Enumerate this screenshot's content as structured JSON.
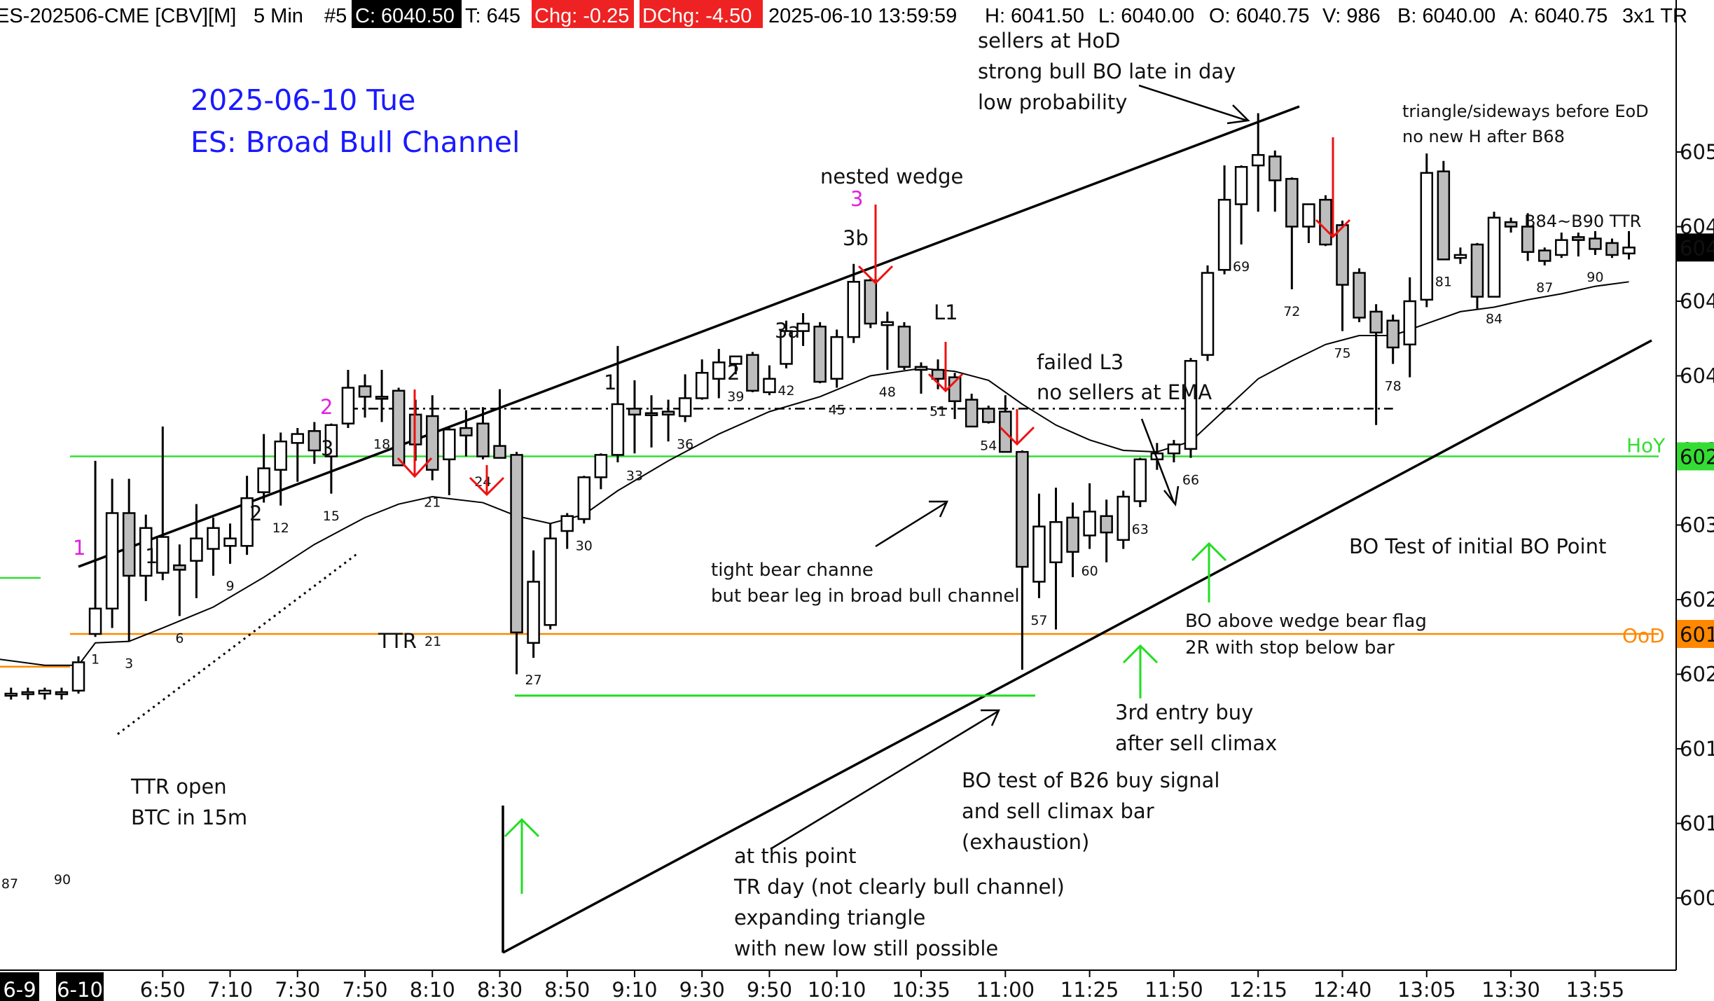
{
  "header": {
    "symbol": "ES-202506-CME [CBV][M]",
    "interval": "5 Min",
    "chart_no": "#5",
    "close": "C: 6040.50",
    "ticks": "T: 645",
    "change": "Chg: -0.25",
    "day_change": "DChg: -4.50",
    "datetime": "2025-06-10 13:59:59",
    "high": "H: 6041.50",
    "low": "L: 6040.00",
    "open": "O: 6040.75",
    "volume": "V: 986",
    "bid": "B: 6040.00",
    "ask": "A: 6040.75",
    "tail": "3x1 TR"
  },
  "title_lines": [
    "2025-06-10 Tue",
    "ES: Broad Bull Channel"
  ],
  "colors": {
    "title": "#1a1aff",
    "bull_fill": "#ffffff",
    "bear_fill": "#bdbdbd",
    "hoy": "#33dd33",
    "ood": "#ff8800",
    "arrow_red": "#ee1111",
    "arrow_green": "#22dd22",
    "magenta": "#dd22dd",
    "price_box": "#000000"
  },
  "chart_data": {
    "type": "candlestick",
    "title": "ES: Broad Bull Channel",
    "date": "2025-06-10 Tue",
    "ylim": [
      6000,
      6055
    ],
    "y_ticks": [
      6000,
      6005,
      6010,
      6015,
      6020,
      6025,
      6030,
      6035,
      6040,
      6045,
      6050
    ],
    "y_tick_labels": [
      "600",
      "601",
      "601",
      "602",
      "602",
      "603",
      "603",
      "604",
      "604",
      "604",
      "605"
    ],
    "x_tick_labels": [
      "6-9",
      "6-10",
      "6:50",
      "7:10",
      "7:30",
      "7:50",
      "8:10",
      "8:30",
      "8:50",
      "9:10",
      "9:30",
      "9:50",
      "10:10",
      "10:35",
      "11:00",
      "11:25",
      "11:50",
      "12:15",
      "12:40",
      "13:05",
      "13:30",
      "13:55"
    ],
    "x_tick_slots": [
      -2,
      1,
      5,
      9,
      13,
      17,
      21,
      25,
      29,
      33,
      37,
      41,
      45,
      50,
      55,
      60,
      65,
      70,
      75,
      80,
      85,
      90
    ],
    "prev_bars": [
      {
        "slot": -4,
        "o": 6013.7,
        "h": 6014.1,
        "l": 6013.3,
        "c": 6013.7
      },
      {
        "slot": -3,
        "o": 6013.7,
        "h": 6014.1,
        "l": 6013.3,
        "c": 6013.8
      },
      {
        "slot": -2,
        "o": 6013.7,
        "h": 6014.1,
        "l": 6013.3,
        "c": 6013.9
      },
      {
        "slot": -1,
        "o": 6013.7,
        "h": 6014.1,
        "l": 6013.3,
        "c": 6013.8
      },
      {
        "slot": 0,
        "o": 6013.9,
        "h": 6016.2,
        "l": 6013.7,
        "c": 6015.8
      }
    ],
    "bars": [
      {
        "n": 1,
        "o": 6017.7,
        "h": 6029.3,
        "l": 6017.5,
        "c": 6019.4
      },
      {
        "n": 2,
        "o": 6019.4,
        "h": 6028.1,
        "l": 6018.1,
        "c": 6025.8
      },
      {
        "n": 3,
        "o": 6025.8,
        "h": 6028.1,
        "l": 6017.2,
        "c": 6021.6
      },
      {
        "n": 4,
        "o": 6021.6,
        "h": 6025.7,
        "l": 6019.9,
        "c": 6024.8
      },
      {
        "n": 5,
        "o": 6021.8,
        "h": 6031.6,
        "l": 6021.3,
        "c": 6024.2
      },
      {
        "n": 6,
        "o": 6022.3,
        "h": 6023.7,
        "l": 6018.9,
        "c": 6022.0
      },
      {
        "n": 7,
        "o": 6022.6,
        "h": 6026.4,
        "l": 6020.1,
        "c": 6024.1
      },
      {
        "n": 8,
        "o": 6023.4,
        "h": 6025.5,
        "l": 6021.6,
        "c": 6024.8
      },
      {
        "n": 9,
        "o": 6023.6,
        "h": 6025.1,
        "l": 6022.4,
        "c": 6024.1
      },
      {
        "n": 10,
        "o": 6023.6,
        "h": 6028.3,
        "l": 6023.0,
        "c": 6026.8
      },
      {
        "n": 11,
        "o": 6027.2,
        "h": 6031.1,
        "l": 6026.5,
        "c": 6028.8
      },
      {
        "n": 12,
        "o": 6028.7,
        "h": 6031.2,
        "l": 6026.3,
        "c": 6030.6
      },
      {
        "n": 13,
        "o": 6030.5,
        "h": 6031.5,
        "l": 6027.9,
        "c": 6031.1
      },
      {
        "n": 14,
        "o": 6031.3,
        "h": 6031.9,
        "l": 6029.1,
        "c": 6030.0
      },
      {
        "n": 15,
        "o": 6029.6,
        "h": 6031.8,
        "l": 6027.1,
        "c": 6031.7
      },
      {
        "n": 16,
        "o": 6031.8,
        "h": 6035.4,
        "l": 6031.5,
        "c": 6034.2
      },
      {
        "n": 17,
        "o": 6034.3,
        "h": 6035.1,
        "l": 6032.2,
        "c": 6033.6
      },
      {
        "n": 18,
        "o": 6033.6,
        "h": 6035.4,
        "l": 6031.9,
        "c": 6033.5
      },
      {
        "n": 19,
        "o": 6034.0,
        "h": 6034.2,
        "l": 6029.1,
        "c": 6029.0
      },
      {
        "n": 20,
        "o": 6032.4,
        "h": 6033.4,
        "l": 6029.3,
        "c": 6030.4
      },
      {
        "n": 21,
        "o": 6032.3,
        "h": 6033.7,
        "l": 6028.0,
        "c": 6028.7
      },
      {
        "n": 22,
        "o": 6029.4,
        "h": 6031.5,
        "l": 6027.0,
        "c": 6031.4
      },
      {
        "n": 23,
        "o": 6031.5,
        "h": 6032.7,
        "l": 6029.6,
        "c": 6031.0
      },
      {
        "n": 24,
        "o": 6031.8,
        "h": 6032.9,
        "l": 6029.4,
        "c": 6029.6
      },
      {
        "n": 25,
        "o": 6030.3,
        "h": 6034.1,
        "l": 6029.8,
        "c": 6029.5
      },
      {
        "n": 26,
        "o": 6029.7,
        "h": 6029.9,
        "l": 6015.0,
        "c": 6017.8
      },
      {
        "n": 27,
        "o": 6017.1,
        "h": 6023.3,
        "l": 6016.1,
        "c": 6021.2
      },
      {
        "n": 28,
        "o": 6018.3,
        "h": 6025.1,
        "l": 6018.0,
        "c": 6024.1
      },
      {
        "n": 29,
        "o": 6024.6,
        "h": 6025.8,
        "l": 6023.4,
        "c": 6025.6
      },
      {
        "n": 30,
        "o": 6025.4,
        "h": 6028.3,
        "l": 6025.1,
        "c": 6028.2
      },
      {
        "n": 31,
        "o": 6028.2,
        "h": 6029.8,
        "l": 6027.4,
        "c": 6029.7
      },
      {
        "n": 32,
        "o": 6029.7,
        "h": 6037.0,
        "l": 6029.2,
        "c": 6033.1
      },
      {
        "n": 33,
        "o": 6032.8,
        "h": 6034.7,
        "l": 6029.8,
        "c": 6032.4
      },
      {
        "n": 34,
        "o": 6032.5,
        "h": 6033.7,
        "l": 6030.2,
        "c": 6032.4
      },
      {
        "n": 35,
        "o": 6032.6,
        "h": 6033.4,
        "l": 6030.6,
        "c": 6032.4
      },
      {
        "n": 36,
        "o": 6032.3,
        "h": 6035.1,
        "l": 6031.9,
        "c": 6033.5
      },
      {
        "n": 37,
        "o": 6033.5,
        "h": 6036.1,
        "l": 6033.4,
        "c": 6035.2
      },
      {
        "n": 38,
        "o": 6034.8,
        "h": 6036.8,
        "l": 6033.5,
        "c": 6035.9
      },
      {
        "n": 39,
        "o": 6035.8,
        "h": 6036.3,
        "l": 6035.1,
        "c": 6036.3
      },
      {
        "n": 40,
        "o": 6036.4,
        "h": 6036.6,
        "l": 6033.9,
        "c": 6034.0
      },
      {
        "n": 41,
        "o": 6033.9,
        "h": 6035.7,
        "l": 6033.7,
        "c": 6034.8
      },
      {
        "n": 42,
        "o": 6035.8,
        "h": 6038.7,
        "l": 6035.5,
        "c": 6038.0
      },
      {
        "n": 43,
        "o": 6038.0,
        "h": 6039.2,
        "l": 6037.0,
        "c": 6038.5
      },
      {
        "n": 44,
        "o": 6038.3,
        "h": 6038.6,
        "l": 6034.5,
        "c": 6034.6
      },
      {
        "n": 45,
        "o": 6034.8,
        "h": 6038.1,
        "l": 6034.2,
        "c": 6037.6
      },
      {
        "n": 46,
        "o": 6037.6,
        "h": 6042.5,
        "l": 6037.2,
        "c": 6041.3
      },
      {
        "n": 47,
        "o": 6041.4,
        "h": 6041.5,
        "l": 6038.2,
        "c": 6038.5
      },
      {
        "n": 48,
        "o": 6038.4,
        "h": 6039.3,
        "l": 6035.4,
        "c": 6038.6
      },
      {
        "n": 49,
        "o": 6038.3,
        "h": 6038.6,
        "l": 6035.4,
        "c": 6035.6
      },
      {
        "n": 50,
        "o": 6035.6,
        "h": 6035.9,
        "l": 6033.8,
        "c": 6035.4
      },
      {
        "n": 51,
        "o": 6035.4,
        "h": 6036.1,
        "l": 6034.1,
        "c": 6034.8
      },
      {
        "n": 52,
        "o": 6034.9,
        "h": 6035.2,
        "l": 6032.1,
        "c": 6033.3
      },
      {
        "n": 53,
        "o": 6033.4,
        "h": 6033.8,
        "l": 6031.8,
        "c": 6031.6
      },
      {
        "n": 54,
        "o": 6032.8,
        "h": 6033.0,
        "l": 6031.8,
        "c": 6031.9
      },
      {
        "n": 55,
        "o": 6032.6,
        "h": 6033.7,
        "l": 6029.9,
        "c": 6029.9
      },
      {
        "n": 56,
        "o": 6029.9,
        "h": 6030.0,
        "l": 6015.3,
        "c": 6022.2
      },
      {
        "n": 57,
        "o": 6021.2,
        "h": 6027.1,
        "l": 6020.1,
        "c": 6024.9
      },
      {
        "n": 58,
        "o": 6022.5,
        "h": 6027.5,
        "l": 6018.0,
        "c": 6025.2
      },
      {
        "n": 59,
        "o": 6025.5,
        "h": 6026.5,
        "l": 6021.5,
        "c": 6023.2
      },
      {
        "n": 60,
        "o": 6024.3,
        "h": 6027.8,
        "l": 6023.4,
        "c": 6025.9
      },
      {
        "n": 61,
        "o": 6025.6,
        "h": 6026.7,
        "l": 6022.5,
        "c": 6024.5
      },
      {
        "n": 62,
        "o": 6024.0,
        "h": 6027.3,
        "l": 6023.4,
        "c": 6026.9
      },
      {
        "n": 63,
        "o": 6026.6,
        "h": 6029.5,
        "l": 6026.2,
        "c": 6029.4
      },
      {
        "n": 64,
        "o": 6029.4,
        "h": 6030.5,
        "l": 6028.7,
        "c": 6029.8
      },
      {
        "n": 65,
        "o": 6029.8,
        "h": 6030.7,
        "l": 6029.2,
        "c": 6030.4
      },
      {
        "n": 66,
        "o": 6030.1,
        "h": 6036.2,
        "l": 6029.5,
        "c": 6036.0
      },
      {
        "n": 67,
        "o": 6036.4,
        "h": 6042.4,
        "l": 6036.0,
        "c": 6041.9
      },
      {
        "n": 68,
        "o": 6042.1,
        "h": 6049.1,
        "l": 6041.8,
        "c": 6046.8
      },
      {
        "n": 69,
        "o": 6046.5,
        "h": 6049.1,
        "l": 6043.8,
        "c": 6049.0
      },
      {
        "n": 70,
        "o": 6049.1,
        "h": 6052.6,
        "l": 6046.0,
        "c": 6049.8
      },
      {
        "n": 71,
        "o": 6049.7,
        "h": 6050.1,
        "l": 6046.0,
        "c": 6048.1
      },
      {
        "n": 72,
        "o": 6048.2,
        "h": 6048.3,
        "l": 6040.8,
        "c": 6045.0
      },
      {
        "n": 73,
        "o": 6045.0,
        "h": 6046.5,
        "l": 6043.9,
        "c": 6046.5
      },
      {
        "n": 74,
        "o": 6046.8,
        "h": 6047.1,
        "l": 6043.7,
        "c": 6043.8
      },
      {
        "n": 75,
        "o": 6045.1,
        "h": 6045.4,
        "l": 6038.0,
        "c": 6041.1
      },
      {
        "n": 76,
        "o": 6041.9,
        "h": 6042.2,
        "l": 6038.6,
        "c": 6038.9
      },
      {
        "n": 77,
        "o": 6039.3,
        "h": 6039.8,
        "l": 6031.7,
        "c": 6037.9
      },
      {
        "n": 78,
        "o": 6038.7,
        "h": 6039.1,
        "l": 6035.8,
        "c": 6036.9
      },
      {
        "n": 79,
        "o": 6037.1,
        "h": 6041.6,
        "l": 6034.9,
        "c": 6040.0
      },
      {
        "n": 80,
        "o": 6040.1,
        "h": 6049.9,
        "l": 6039.6,
        "c": 6048.6
      },
      {
        "n": 81,
        "o": 6048.7,
        "h": 6049.4,
        "l": 6042.8,
        "c": 6042.8
      },
      {
        "n": 82,
        "o": 6042.9,
        "h": 6043.6,
        "l": 6042.5,
        "c": 6043.1
      },
      {
        "n": 83,
        "o": 6043.8,
        "h": 6043.9,
        "l": 6039.5,
        "c": 6040.3
      },
      {
        "n": 84,
        "o": 6040.3,
        "h": 6046.0,
        "l": 6040.3,
        "c": 6045.6
      },
      {
        "n": 85,
        "o": 6045.3,
        "h": 6045.6,
        "l": 6044.6,
        "c": 6045.0
      },
      {
        "n": 86,
        "o": 6045.0,
        "h": 6045.9,
        "l": 6042.7,
        "c": 6043.3
      },
      {
        "n": 87,
        "o": 6043.4,
        "h": 6043.6,
        "l": 6042.4,
        "c": 6042.7
      },
      {
        "n": 88,
        "o": 6043.1,
        "h": 6044.6,
        "l": 6042.9,
        "c": 6044.1
      },
      {
        "n": 89,
        "o": 6044.3,
        "h": 6044.6,
        "l": 6043.0,
        "c": 6044.1
      },
      {
        "n": 90,
        "o": 6044.2,
        "h": 6044.7,
        "l": 6043.1,
        "c": 6043.5
      },
      {
        "n": 91,
        "o": 6043.9,
        "h": 6044.2,
        "l": 6042.9,
        "c": 6043.1
      },
      {
        "n": 92,
        "o": 6043.2,
        "h": 6044.7,
        "l": 6042.8,
        "c": 6043.6
      }
    ],
    "bar_number_labels": [
      1,
      3,
      6,
      9,
      12,
      15,
      18,
      21,
      24,
      27,
      30,
      33,
      36,
      39,
      42,
      45,
      48,
      51,
      54,
      57,
      60,
      63,
      66,
      69,
      72,
      75,
      78,
      81,
      84,
      87,
      90
    ],
    "ema": [
      {
        "slot": -10,
        "y": 6017.8
      },
      {
        "slot": -6,
        "y": 6016.2
      },
      {
        "slot": -2,
        "y": 6015.6
      },
      {
        "slot": 0,
        "y": 6015.6
      },
      {
        "slot": 1,
        "y": 6017.1
      },
      {
        "slot": 3,
        "y": 6017.2
      },
      {
        "slot": 5,
        "y": 6018.1
      },
      {
        "slot": 8,
        "y": 6019.5
      },
      {
        "slot": 11,
        "y": 6021.5
      },
      {
        "slot": 14,
        "y": 6023.7
      },
      {
        "slot": 17,
        "y": 6025.5
      },
      {
        "slot": 19,
        "y": 6026.4
      },
      {
        "slot": 21,
        "y": 6026.9
      },
      {
        "slot": 24,
        "y": 6026.5
      },
      {
        "slot": 26,
        "y": 6025.6
      },
      {
        "slot": 28,
        "y": 6025.1
      },
      {
        "slot": 30,
        "y": 6025.7
      },
      {
        "slot": 32,
        "y": 6027.3
      },
      {
        "slot": 35,
        "y": 6029.3
      },
      {
        "slot": 38,
        "y": 6031.1
      },
      {
        "slot": 41,
        "y": 6032.6
      },
      {
        "slot": 44,
        "y": 6033.6
      },
      {
        "slot": 47,
        "y": 6035.0
      },
      {
        "slot": 50,
        "y": 6035.5
      },
      {
        "slot": 52,
        "y": 6035.3
      },
      {
        "slot": 54,
        "y": 6034.7
      },
      {
        "slot": 56,
        "y": 6033.1
      },
      {
        "slot": 58,
        "y": 6031.7
      },
      {
        "slot": 60,
        "y": 6030.7
      },
      {
        "slot": 62,
        "y": 6030.0
      },
      {
        "slot": 64,
        "y": 6029.9
      },
      {
        "slot": 66,
        "y": 6030.6
      },
      {
        "slot": 68,
        "y": 6032.7
      },
      {
        "slot": 70,
        "y": 6034.8
      },
      {
        "slot": 72,
        "y": 6036.0
      },
      {
        "slot": 74,
        "y": 6037.1
      },
      {
        "slot": 76,
        "y": 6037.7
      },
      {
        "slot": 78,
        "y": 6037.7
      },
      {
        "slot": 80,
        "y": 6038.5
      },
      {
        "slot": 82,
        "y": 6039.3
      },
      {
        "slot": 84,
        "y": 6039.6
      },
      {
        "slot": 86,
        "y": 6040.1
      },
      {
        "slot": 88,
        "y": 6040.5
      },
      {
        "slot": 90,
        "y": 6041.0
      },
      {
        "slot": 92,
        "y": 6041.3
      }
    ],
    "levels": {
      "hoy": {
        "price": 6029.6,
        "label": "HoY",
        "tag": "602"
      },
      "ood": {
        "price": 6017.7,
        "label": "OoD",
        "tag": "601"
      },
      "last_price_tag": "604",
      "dash_dot": {
        "price": 6032.8,
        "from_slot": 16,
        "to_slot": 78
      }
    },
    "annotations": [
      "sellers at HoD",
      "strong bull BO late in day",
      "low probability",
      "triangle/sideways before EoD",
      "no new H after B68",
      "B84~B90 TTR",
      "nested wedge",
      "3b",
      "3a",
      "L1",
      "failed L3",
      "no sellers at EMA",
      "tight bear channe",
      "but bear leg in broad bull channel",
      "BO Test of initial BO Point",
      "BO above wedge bear flag",
      "2R with stop below bar",
      "3rd entry buy",
      "after sell climax",
      "BO test of B26 buy signal",
      "and sell climax bar",
      "(exhaustion)",
      "at this point",
      "TR day (not clearly bull channel)",
      "expanding triangle",
      "with new low still possible",
      "TTR open",
      "BTC in 15m",
      "TTR"
    ],
    "count_labels": {
      "c1": "1",
      "c2": "2",
      "c3": "3",
      "c3b": "3b",
      "c3a": "3a",
      "c2b": "2",
      "c1b": "1",
      "m1": "1",
      "m2": "2",
      "m3": "3"
    }
  }
}
